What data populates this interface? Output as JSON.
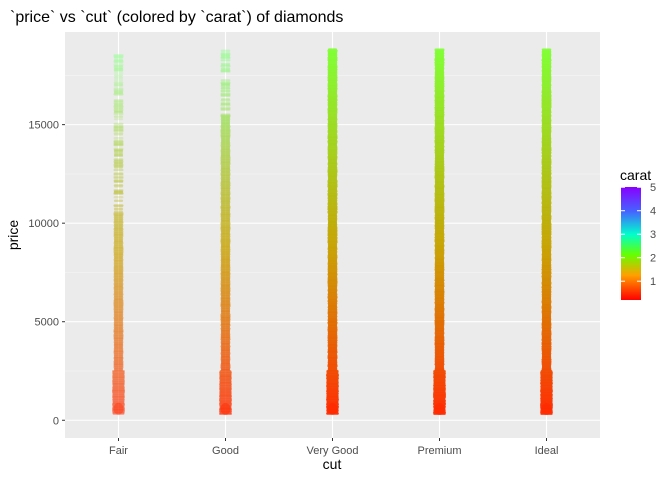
{
  "chart_data": {
    "type": "scatter",
    "title": "`price` vs `cut` (colored by `carat`) of diamonds",
    "xlabel": "cut",
    "ylabel": "price",
    "categories": [
      "Fair",
      "Good",
      "Very Good",
      "Premium",
      "Ideal"
    ],
    "ylim": [
      -900,
      19700
    ],
    "y_ticks": [
      0,
      5000,
      10000,
      15000
    ],
    "y_tick_labels": [
      "0",
      "5000",
      "10000",
      "15000"
    ],
    "grid": true,
    "legend": {
      "title": "carat",
      "placement": "right",
      "ticks": [
        1,
        2,
        3,
        4,
        5
      ],
      "tick_labels": [
        "1",
        "2",
        "3",
        "4",
        "5"
      ],
      "range": [
        0.2,
        5.01
      ],
      "colors": [
        "#ff0000",
        "#ffff00",
        "#00ff00",
        "#00ffff",
        "#0000ff",
        "#8800ff"
      ]
    },
    "series": [
      {
        "category": "Fair",
        "y_min": 337,
        "y_max": 18574,
        "dense_max": 10500,
        "color_low": "#ff2a00",
        "color_high": "#9dff9d",
        "opacity": 0.45
      },
      {
        "category": "Good",
        "y_min": 327,
        "y_max": 18788,
        "dense_max": 15500,
        "color_low": "#ff2a00",
        "color_high": "#88ff88",
        "opacity": 0.6
      },
      {
        "category": "Very Good",
        "y_min": 336,
        "y_max": 18818,
        "dense_max": 18818,
        "color_low": "#ff2a00",
        "color_high": "#7fff33",
        "opacity": 0.9
      },
      {
        "category": "Premium",
        "y_min": 326,
        "y_max": 18823,
        "dense_max": 18823,
        "color_low": "#ff2a00",
        "color_high": "#7fff33",
        "opacity": 0.9
      },
      {
        "category": "Ideal",
        "y_min": 326,
        "y_max": 18806,
        "dense_max": 18806,
        "color_low": "#ff2a00",
        "color_high": "#7fff33",
        "opacity": 0.9
      }
    ],
    "colors": {
      "panel_bg": "#ebebeb",
      "grid_major": "#ffffff",
      "axis_text": "#4d4d4d",
      "label_text": "#000000"
    }
  }
}
